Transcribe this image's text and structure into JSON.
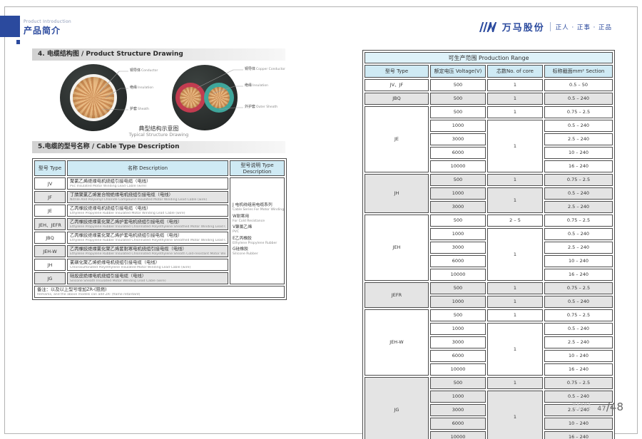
{
  "header": {
    "eyebrow": "Product Introduction",
    "title": "产品简介",
    "brand": {
      "name": "万马股份",
      "slogan": "正人 · 正事 · 正品"
    }
  },
  "structure_section": {
    "title": "4. 电缆结构图 / Product Structure Drawing",
    "caption_zh": "典型结构示意图",
    "caption_en": "Typical Structure Drawing",
    "single_core": {
      "labels": [
        {
          "zh": "铜导体",
          "en": "Conductor"
        },
        {
          "zh": "绝缘",
          "en": "Insulation"
        },
        {
          "zh": "护套",
          "en": "Sheath"
        }
      ]
    },
    "two_core": {
      "labels": [
        {
          "zh": "铜导体",
          "en": "Copper Conductor"
        },
        {
          "zh": "绝缘",
          "en": "Insulation"
        },
        {
          "zh": "外护套",
          "en": "Outer Sheath"
        }
      ]
    }
  },
  "type_section": {
    "title": "5.电缆的型号名称 / Cable Type Description",
    "table": {
      "headers": [
        "型号 Type",
        "名称 Description",
        "型号说明 Type Description"
      ],
      "rows": [
        {
          "type": "JV",
          "name_zh": "聚氯乙烯绝缘电机绕组引接电缆（电线）",
          "name_en": "Pvc Insulated Motor Winding Lead Cable (wire)"
        },
        {
          "type": "JF",
          "name_zh": "丁腈聚氯乙烯复合物绝缘电机绕组引接电缆（电线）",
          "name_en": "Nitrile And Polyvinyl Chloride Compound Insulated Motor Winding Lead Cable (wire)"
        },
        {
          "type": "JE",
          "name_zh": "乙丙橡胶绝缘电机绕组引接电缆（电线）",
          "name_en": "Ethylene Propylene Rubber Insulated Motor Winding Lead Cable (wire)"
        },
        {
          "type": "JEH、JEFR",
          "name_zh": "乙丙橡胶绝缘氯化聚乙烯护套电机绕组引接电缆（电线）",
          "name_en": "Ethylene Propylene Rubber Insulated Chlorinated Polyethylene Sheathed Motor Winding Lead Cable (wire)"
        },
        {
          "type": "JBQ",
          "name_zh": "乙丙橡胶绝缘氯化聚乙烯护套电机绕组引接电缆（电线）",
          "name_en": "Ethylene Propylene Rubber Insulated Chlorinated Polyethylene Sheathed Motor Winding Lead Cable (wire)"
        },
        {
          "type": "JEH-W",
          "name_zh": "乙丙橡胶绝缘氯化聚乙烯套耐寒电机绕组引接电缆（电线）",
          "name_en": "Ethylene Propylene Rubber Insulated Chlorinated Polyethylene Sheath Cold-resistant Motor Winding Lead Cable (wire)"
        },
        {
          "type": "JH",
          "name_zh": "氯磺化聚乙烯绝缘电机绕组引接电缆（电线）",
          "name_en": "Chlorosulfonated Polyethylene Insulated Motor Winding Lead Cable (wire)"
        },
        {
          "type": "JG",
          "name_zh": "硅胶皮绝缘电机绕组引接电缆（电线）",
          "name_en": "Silicone Sheath Insulated Motor Winding Lead Cable (wire)"
        }
      ],
      "legend": [
        {
          "zh": "J 电机绕组用电缆系列",
          "en": "Cable Series For Motor Winding"
        },
        {
          "zh": "W耐寒用",
          "en": "For Cold Resistance"
        },
        {
          "zh": "V聚氯乙烯",
          "en": "PVC"
        },
        {
          "zh": "E乙丙橡胶",
          "en": "Ethylene Propylene Rubber"
        },
        {
          "zh": "G硅橡胶",
          "en": "Silicone Rubber"
        }
      ],
      "remark_zh": "备注：以及以上型号增加ZR-(阻燃)",
      "remark_en": "Remarks, and the above models can add ZR- (flame retardant)"
    }
  },
  "production_table": {
    "title": "可生产范围 Production Range",
    "headers": [
      "型号 Type",
      "额定电压 Voltage(V)",
      "芯数No. of core",
      "标称截面mm² Section"
    ],
    "groups": [
      {
        "type": "JV、JF",
        "shaded": false,
        "rows": [
          {
            "voltage": "500",
            "core": "1",
            "core_span": 1,
            "section": "0.5 – 50"
          }
        ]
      },
      {
        "type": "JBQ",
        "shaded": true,
        "rows": [
          {
            "voltage": "500",
            "core": "1",
            "core_span": 1,
            "section": "0.5 – 240"
          }
        ]
      },
      {
        "type": "JE",
        "shaded": false,
        "rows": [
          {
            "voltage": "500",
            "core": "1",
            "core_span": 1,
            "section": "0.75 – 2.5"
          },
          {
            "voltage": "1000",
            "core": "1",
            "core_span": 4,
            "section": "0.5 – 240"
          },
          {
            "voltage": "3000",
            "section": "2.5 – 240"
          },
          {
            "voltage": "6000",
            "section": "10 – 240"
          },
          {
            "voltage": "10000",
            "section": "16 – 240"
          }
        ]
      },
      {
        "type": "JH",
        "shaded": true,
        "rows": [
          {
            "voltage": "500",
            "core": "1",
            "core_span": 1,
            "section": "0.75 – 2.5"
          },
          {
            "voltage": "1000",
            "core": "1",
            "core_span": 2,
            "section": "0.5 – 240"
          },
          {
            "voltage": "3000",
            "section": "2.5 – 240"
          }
        ]
      },
      {
        "type": "JEH",
        "shaded": false,
        "rows": [
          {
            "voltage": "500",
            "core": "2 – 5",
            "core_span": 1,
            "section": "0.75 – 2.5"
          },
          {
            "voltage": "1000",
            "core": "1",
            "core_span": 4,
            "section": "0.5 – 240"
          },
          {
            "voltage": "3000",
            "section": "2.5 – 240"
          },
          {
            "voltage": "6000",
            "section": "10 – 240"
          },
          {
            "voltage": "10000",
            "section": "16 – 240"
          }
        ]
      },
      {
        "type": "JEFR",
        "shaded": true,
        "rows": [
          {
            "voltage": "500",
            "core": "1",
            "core_span": 1,
            "section": "0.75 – 2.5"
          },
          {
            "voltage": "1000",
            "core": "1",
            "core_span": 1,
            "section": "0.5 – 240"
          }
        ]
      },
      {
        "type": "JEH-W",
        "shaded": false,
        "rows": [
          {
            "voltage": "500",
            "core": "1",
            "core_span": 1,
            "section": "0.75 – 2.5"
          },
          {
            "voltage": "1000",
            "core": "1",
            "core_span": 4,
            "section": "0.5 – 240"
          },
          {
            "voltage": "3000",
            "section": "2.5 – 240"
          },
          {
            "voltage": "6000",
            "section": "10 – 240"
          },
          {
            "voltage": "10000",
            "section": "16 – 240"
          }
        ]
      },
      {
        "type": "JG",
        "shaded": true,
        "rows": [
          {
            "voltage": "500",
            "core": "1",
            "core_span": 1,
            "section": "0.75 – 2.5"
          },
          {
            "voltage": "1000",
            "core": "1",
            "core_span": 4,
            "section": "0.5 – 240"
          },
          {
            "voltage": "3000",
            "section": "2.5 – 240"
          },
          {
            "voltage": "6000",
            "section": "10 – 240"
          },
          {
            "voltage": "10000",
            "section": "16 – 240"
          }
        ]
      }
    ]
  },
  "footer": {
    "brand_top": "WANMA",
    "brand_bottom": "CABLE",
    "page_num": "47",
    "page_total": "/48"
  },
  "colors": {
    "brand_blue": "#2b4a9e",
    "table_header_bg": "#cfeaf4",
    "table_title_bg": "#def2f9",
    "row_shade": "#e4e4e4",
    "copper": "#d89a62",
    "sheath_dark": "#2e3231",
    "core_red": "#c23c50",
    "core_teal": "#3fa69b"
  }
}
